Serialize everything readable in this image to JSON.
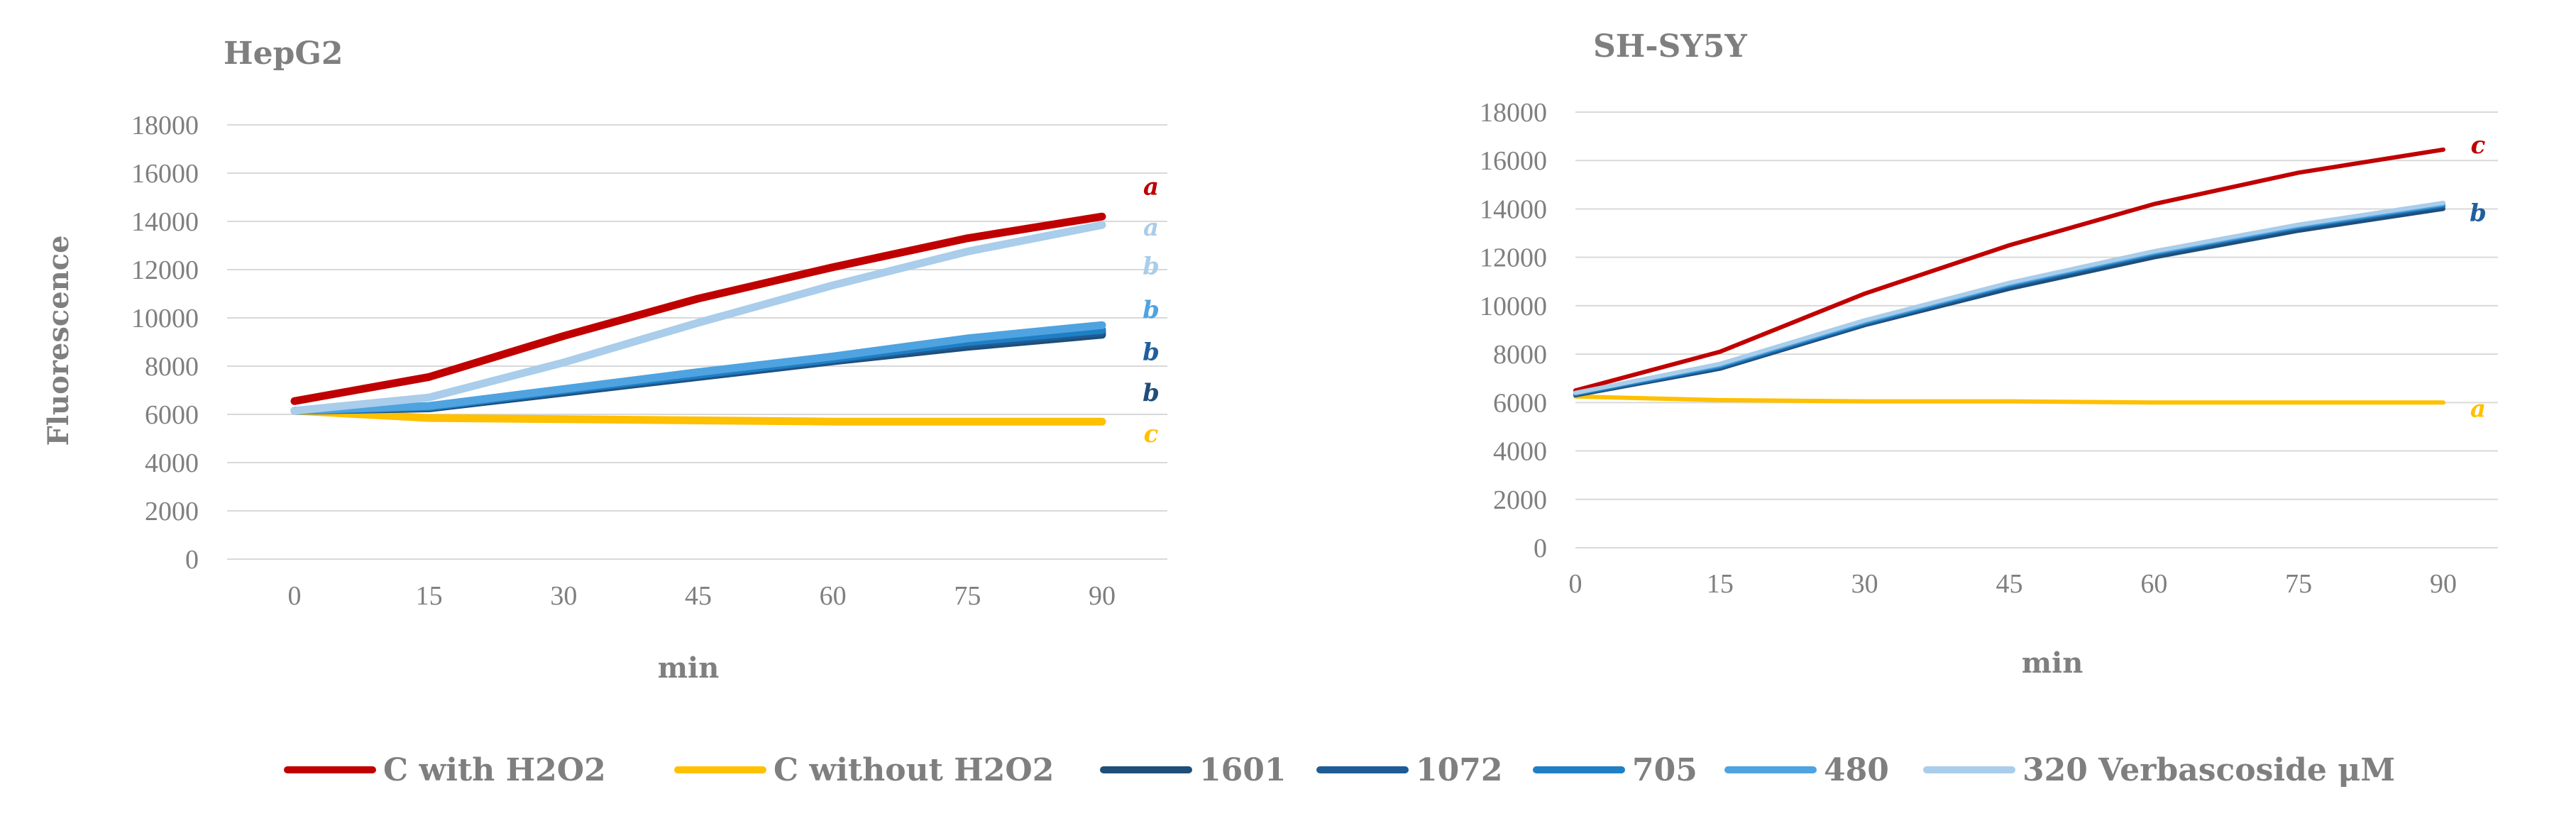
{
  "colors": {
    "c_with_h2o2": "#c00000",
    "c_without_h2o2": "#ffc000",
    "c1601": "#1f4e79",
    "c1072": "#1e5b95",
    "c705": "#1f7fc4",
    "c480": "#4fa3e0",
    "c320": "#a9cdea",
    "text": "#7f7f7f",
    "grid": "#d9d9d9"
  },
  "legend": {
    "items": [
      {
        "label": "C with H2O2",
        "color": "#c00000"
      },
      {
        "label": "C without H2O2",
        "color": "#ffc000"
      },
      {
        "label": "1601",
        "color": "#1f4e79"
      },
      {
        "label": "1072",
        "color": "#1e5b95"
      },
      {
        "label": "705",
        "color": "#1f7fc4"
      },
      {
        "label": "480",
        "color": "#4fa3e0"
      },
      {
        "label": "320  Verbascoside μM",
        "color": "#a9cdea"
      }
    ]
  },
  "chart_data": [
    {
      "type": "line",
      "title": "HepG2",
      "xlabel": "min",
      "ylabel": "Fluorescence",
      "categories": [
        "0",
        "15",
        "30",
        "45",
        "60",
        "75",
        "90"
      ],
      "yticks": [
        "0",
        "2000",
        "4000",
        "6000",
        "8000",
        "10000",
        "12000",
        "14000",
        "16000",
        "18000"
      ],
      "ylim": [
        0,
        18000
      ],
      "series": [
        {
          "name": "C with H2O2",
          "color": "#c00000",
          "values": [
            6550,
            7550,
            9250,
            10800,
            12100,
            13300,
            14200
          ]
        },
        {
          "name": "C without H2O2",
          "color": "#ffc000",
          "values": [
            6150,
            5850,
            5800,
            5750,
            5700,
            5700,
            5700
          ]
        },
        {
          "name": "1601",
          "color": "#1f4e79",
          "values": [
            6150,
            6250,
            6900,
            7550,
            8200,
            8800,
            9300
          ]
        },
        {
          "name": "1072",
          "color": "#1e5b95",
          "values": [
            6150,
            6300,
            6950,
            7600,
            8250,
            8900,
            9400
          ]
        },
        {
          "name": "705",
          "color": "#1f7fc4",
          "values": [
            6150,
            6300,
            7000,
            7650,
            8300,
            9000,
            9500
          ]
        },
        {
          "name": "480",
          "color": "#4fa3e0",
          "values": [
            6150,
            6350,
            7050,
            7750,
            8400,
            9150,
            9700
          ]
        },
        {
          "name": "320",
          "color": "#a9cdea",
          "values": [
            6150,
            6700,
            8150,
            9800,
            11350,
            12750,
            13850
          ]
        }
      ],
      "annotations": [
        {
          "text": "a",
          "color": "#c00000",
          "y": 15400
        },
        {
          "text": "a",
          "color": "#a9cdea",
          "y": 13700
        },
        {
          "text": "b",
          "color": "#a9cdea",
          "y": 12100
        },
        {
          "text": "b",
          "color": "#4fa3e0",
          "y": 10300
        },
        {
          "text": "b",
          "color": "#1f5f9e",
          "y": 8550
        },
        {
          "text": "b",
          "color": "#1f4e79",
          "y": 6850
        },
        {
          "text": "c",
          "color": "#ffc000",
          "y": 5150
        }
      ]
    },
    {
      "type": "line",
      "title": "SH-SY5Y",
      "xlabel": "min",
      "ylabel": "",
      "categories": [
        "0",
        "15",
        "30",
        "45",
        "60",
        "75",
        "90"
      ],
      "yticks": [
        "0",
        "2000",
        "4000",
        "6000",
        "8000",
        "10000",
        "12000",
        "14000",
        "16000",
        "18000"
      ],
      "ylim": [
        0,
        18000
      ],
      "series": [
        {
          "name": "C with H2O2",
          "color": "#c00000",
          "values": [
            6500,
            8100,
            10500,
            12500,
            14200,
            15500,
            16450
          ]
        },
        {
          "name": "C without H2O2",
          "color": "#ffc000",
          "values": [
            6250,
            6100,
            6050,
            6050,
            6000,
            6000,
            6000
          ]
        },
        {
          "name": "1601",
          "color": "#1f4e79",
          "values": [
            6300,
            7400,
            9200,
            10700,
            12000,
            13100,
            14000
          ]
        },
        {
          "name": "1072",
          "color": "#1e5b95",
          "values": [
            6350,
            7450,
            9250,
            10800,
            12100,
            13200,
            14100
          ]
        },
        {
          "name": "705",
          "color": "#1f7fc4",
          "values": [
            6350,
            7500,
            9300,
            10850,
            12150,
            13250,
            14150
          ]
        },
        {
          "name": "480",
          "color": "#4fa3e0",
          "values": [
            6400,
            7550,
            9350,
            10900,
            12200,
            13300,
            14200
          ]
        },
        {
          "name": "320",
          "color": "#a9cdea",
          "values": [
            6400,
            7600,
            9400,
            10950,
            12250,
            13350,
            14250
          ]
        }
      ],
      "annotations": [
        {
          "text": "c",
          "color": "#c00000",
          "y": 16600
        },
        {
          "text": "b",
          "color": "#1f5f9e",
          "y": 13800
        },
        {
          "text": "a",
          "color": "#ffc000",
          "y": 5700
        }
      ]
    }
  ]
}
